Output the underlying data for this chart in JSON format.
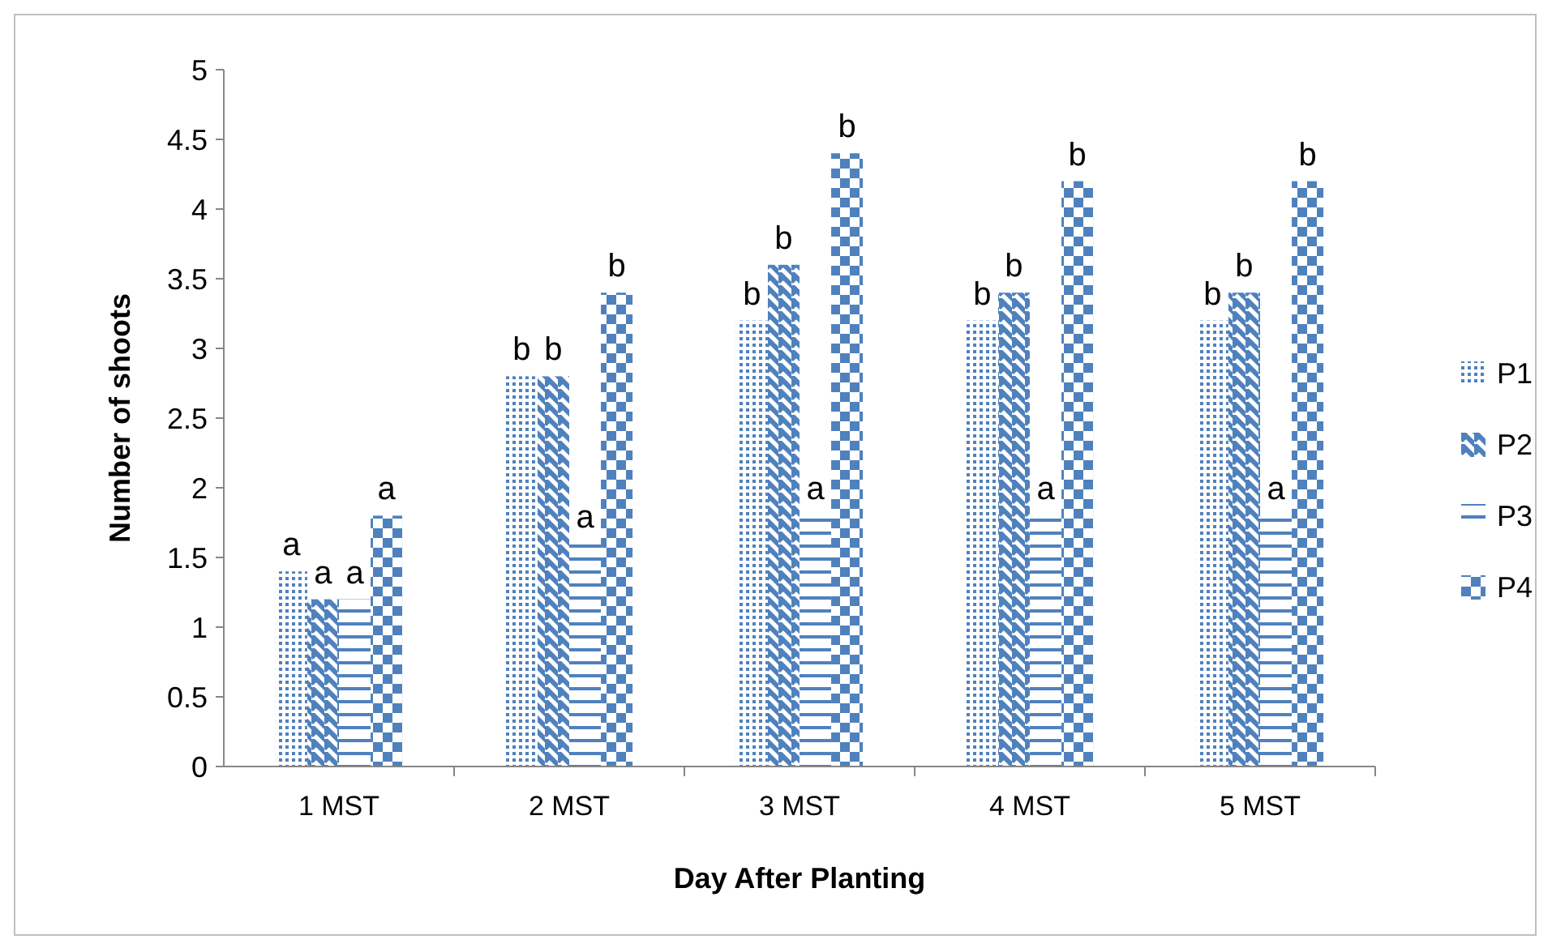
{
  "chart_data": {
    "type": "bar",
    "xlabel": "Day After Planting",
    "ylabel": "Number of shoots",
    "categories": [
      "1 MST",
      "2 MST",
      "3 MST",
      "4 MST",
      "5 MST"
    ],
    "series": [
      {
        "name": "P1",
        "color": "#4f81bd",
        "values": [
          1.4,
          2.8,
          3.2,
          3.2,
          3.2
        ],
        "value_labels": [
          "a",
          "b",
          "b",
          "b",
          "b"
        ]
      },
      {
        "name": "P2",
        "color": "#4f81bd",
        "values": [
          1.2,
          2.8,
          3.6,
          3.4,
          3.4
        ],
        "value_labels": [
          "a",
          "b",
          "b",
          "b",
          "b"
        ]
      },
      {
        "name": "P3",
        "color": "#4f81bd",
        "values": [
          1.2,
          1.6,
          1.8,
          1.8,
          1.8
        ],
        "value_labels": [
          "a",
          "a",
          "a",
          "a",
          "a"
        ]
      },
      {
        "name": "P4",
        "color": "#4f81bd",
        "values": [
          1.8,
          3.4,
          4.4,
          4.2,
          4.2
        ],
        "value_labels": [
          "a",
          "b",
          "b",
          "b",
          "b"
        ]
      }
    ],
    "ylim": [
      0,
      5
    ],
    "yticks": [
      0,
      0.5,
      1,
      1.5,
      2,
      2.5,
      3,
      3.5,
      4,
      4.5,
      5
    ],
    "grid": false,
    "legend": "right"
  }
}
